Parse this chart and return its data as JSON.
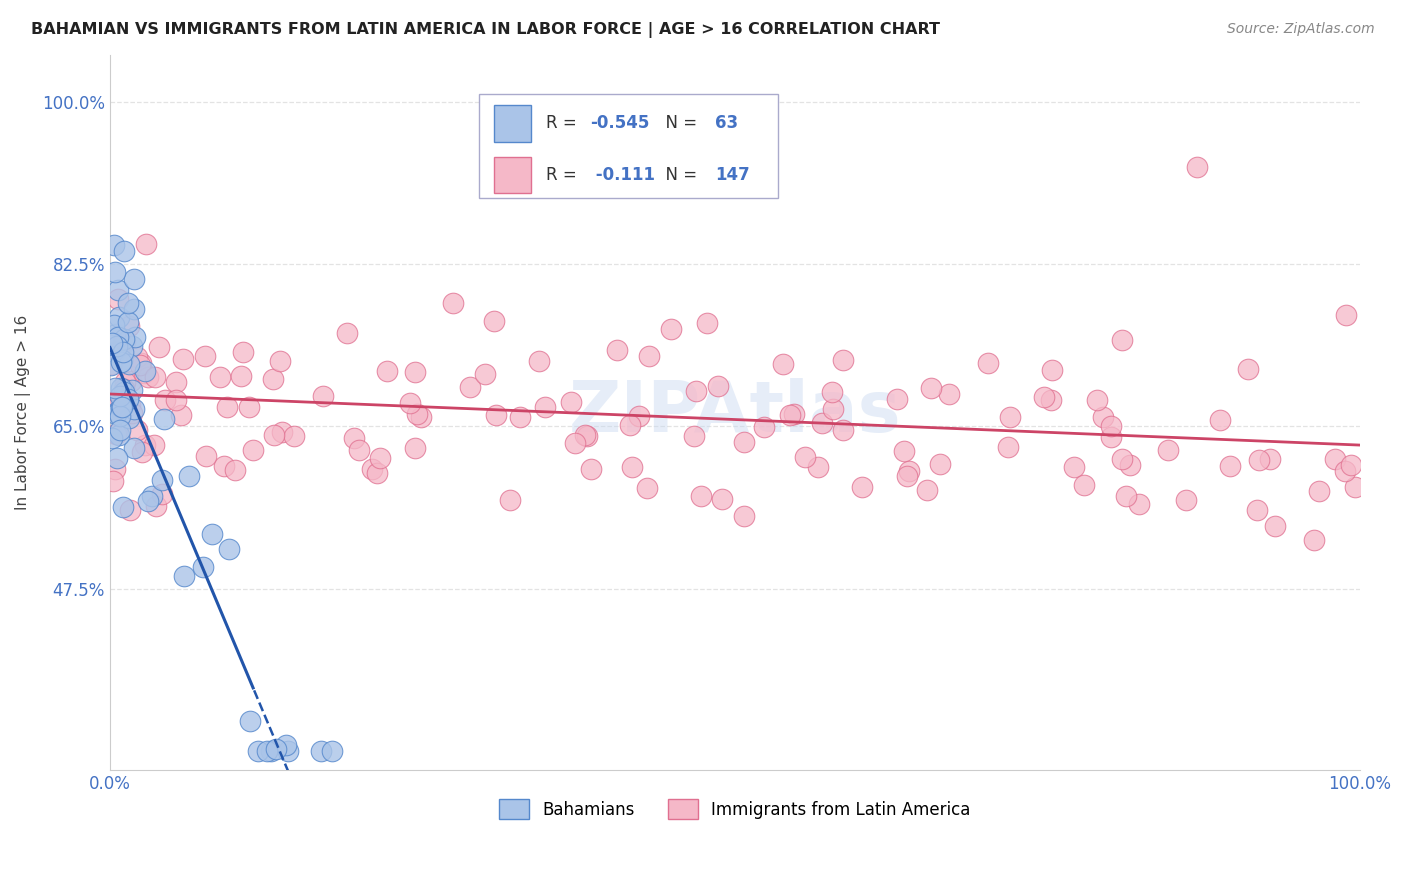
{
  "title": "BAHAMIAN VS IMMIGRANTS FROM LATIN AMERICA IN LABOR FORCE | AGE > 16 CORRELATION CHART",
  "source": "Source: ZipAtlas.com",
  "ylabel": "In Labor Force | Age > 16",
  "xlim": [
    0.0,
    1.0
  ],
  "ylim": [
    0.28,
    1.05
  ],
  "yticks": [
    0.475,
    0.65,
    0.825,
    1.0
  ],
  "ytick_labels": [
    "47.5%",
    "65.0%",
    "82.5%",
    "100.0%"
  ],
  "blue_R": "-0.545",
  "blue_N": "63",
  "pink_R": "-0.111",
  "pink_N": "147",
  "legend_label_blue": "Bahamians",
  "legend_label_pink": "Immigrants from Latin America",
  "watermark": "ZIPAtlas",
  "background_color": "#ffffff",
  "grid_color": "#dddddd",
  "blue_scatter_color": "#aac4e8",
  "blue_edge_color": "#5588cc",
  "blue_line_color": "#2255aa",
  "pink_scatter_color": "#f5b8c8",
  "pink_edge_color": "#e07090",
  "pink_line_color": "#cc4466",
  "title_color": "#222222",
  "axis_label_color": "#444444",
  "tick_color": "#4472c4",
  "r_value_color": "#4472c4",
  "legend_border_color": "#aaaacc",
  "blue_intercept": 0.735,
  "blue_slope": -3.2,
  "pink_intercept": 0.685,
  "pink_slope": -0.055
}
